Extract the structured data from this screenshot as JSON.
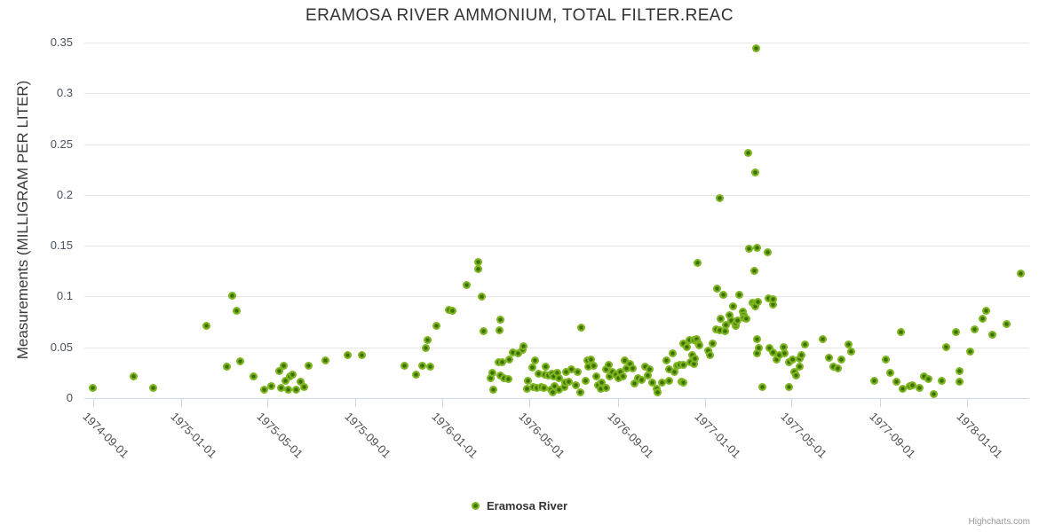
{
  "credits": {
    "label": "Highcharts.com"
  },
  "colors": {
    "marker_fill": "#7cb520",
    "marker_core": "#3e7100",
    "grid": "#e6e6e6",
    "axis_line": "#ccd6eb",
    "title": "#333333",
    "tick_label": "#4d4d4d"
  },
  "chart_data": {
    "type": "scatter",
    "title": "ERAMOSA RIVER AMMONIUM, TOTAL FILTER.REAC",
    "ylabel": "Measurements (MILLIGRAM PER LITER)",
    "xlabel": "",
    "ylim": [
      0,
      0.35
    ],
    "y_ticks": [
      0,
      0.05,
      0.1,
      0.15,
      0.2,
      0.25,
      0.3,
      0.35
    ],
    "x_ticks": [
      "1974-09-01",
      "1975-01-01",
      "1975-05-01",
      "1975-09-01",
      "1976-01-01",
      "1976-05-01",
      "1976-09-01",
      "1977-01-01",
      "1977-05-01",
      "1977-09-01",
      "1978-01-01"
    ],
    "x_range": [
      "1974-08-19",
      "1978-03-29"
    ],
    "grid": true,
    "legend_position": "bottom-center",
    "series": [
      {
        "name": "Eramosa River",
        "color": "#7cb520",
        "points": [
          [
            "1974-08-31",
            0.01
          ],
          [
            "1974-10-27",
            0.021
          ],
          [
            "1974-11-24",
            0.01
          ],
          [
            "1975-02-06",
            0.071
          ],
          [
            "1975-03-06",
            0.031
          ],
          [
            "1975-03-14",
            0.101
          ],
          [
            "1975-03-20",
            0.086
          ],
          [
            "1975-03-25",
            0.036
          ],
          [
            "1975-04-13",
            0.021
          ],
          [
            "1975-04-27",
            0.008
          ],
          [
            "1975-05-07",
            0.012
          ],
          [
            "1975-05-18",
            0.027
          ],
          [
            "1975-05-21",
            0.01
          ],
          [
            "1975-05-25",
            0.032
          ],
          [
            "1975-05-27",
            0.017
          ],
          [
            "1975-05-31",
            0.008
          ],
          [
            "1975-06-02",
            0.021
          ],
          [
            "1975-06-06",
            0.023
          ],
          [
            "1975-06-11",
            0.008
          ],
          [
            "1975-06-17",
            0.016
          ],
          [
            "1975-06-22",
            0.011
          ],
          [
            "1975-06-28",
            0.032
          ],
          [
            "1975-07-22",
            0.037
          ],
          [
            "1975-08-21",
            0.042
          ],
          [
            "1975-09-10",
            0.042
          ],
          [
            "1975-11-09",
            0.032
          ],
          [
            "1975-11-25",
            0.023
          ],
          [
            "1975-12-03",
            0.032
          ],
          [
            "1975-12-08",
            0.049
          ],
          [
            "1975-12-11",
            0.057
          ],
          [
            "1975-12-15",
            0.031
          ],
          [
            "1975-12-23",
            0.071
          ],
          [
            "1976-01-10",
            0.087
          ],
          [
            "1976-01-15",
            0.086
          ],
          [
            "1976-02-03",
            0.111
          ],
          [
            "1976-02-20",
            0.134
          ],
          [
            "1976-02-20",
            0.127
          ],
          [
            "1976-02-24",
            0.1
          ],
          [
            "1976-02-27",
            0.066
          ],
          [
            "1976-03-08",
            0.02
          ],
          [
            "1976-03-10",
            0.025
          ],
          [
            "1976-03-12",
            0.008
          ],
          [
            "1976-03-19",
            0.035
          ],
          [
            "1976-03-20",
            0.067
          ],
          [
            "1976-03-21",
            0.077
          ],
          [
            "1976-03-22",
            0.022
          ],
          [
            "1976-03-24",
            0.035
          ],
          [
            "1976-03-27",
            0.02
          ],
          [
            "1976-04-02",
            0.019
          ],
          [
            "1976-04-03",
            0.038
          ],
          [
            "1976-04-08",
            0.045
          ],
          [
            "1976-04-15",
            0.044
          ],
          [
            "1976-04-21",
            0.048
          ],
          [
            "1976-04-23",
            0.051
          ],
          [
            "1976-04-28",
            0.009
          ],
          [
            "1976-04-29",
            0.017
          ],
          [
            "1976-05-05",
            0.03
          ],
          [
            "1976-05-06",
            0.011
          ],
          [
            "1976-05-09",
            0.037
          ],
          [
            "1976-05-11",
            0.01
          ],
          [
            "1976-05-14",
            0.024
          ],
          [
            "1976-05-17",
            0.011
          ],
          [
            "1976-05-21",
            0.01
          ],
          [
            "1976-05-22",
            0.023
          ],
          [
            "1976-05-24",
            0.031
          ],
          [
            "1976-05-27",
            0.022
          ],
          [
            "1976-05-31",
            0.008
          ],
          [
            "1976-06-01",
            0.024
          ],
          [
            "1976-06-03",
            0.006
          ],
          [
            "1976-06-04",
            0.021
          ],
          [
            "1976-06-05",
            0.012
          ],
          [
            "1976-06-09",
            0.025
          ],
          [
            "1976-06-11",
            0.02
          ],
          [
            "1976-06-11",
            0.008
          ],
          [
            "1976-06-18",
            0.011
          ],
          [
            "1976-06-20",
            0.015
          ],
          [
            "1976-06-21",
            0.026
          ],
          [
            "1976-06-25",
            0.016
          ],
          [
            "1976-06-28",
            0.028
          ],
          [
            "1976-07-05",
            0.013
          ],
          [
            "1976-07-07",
            0.026
          ],
          [
            "1976-07-11",
            0.006
          ],
          [
            "1976-07-12",
            0.069
          ],
          [
            "1976-07-18",
            0.017
          ],
          [
            "1976-07-21",
            0.037
          ],
          [
            "1976-07-22",
            0.031
          ],
          [
            "1976-07-26",
            0.038
          ],
          [
            "1976-07-29",
            0.032
          ],
          [
            "1976-08-02",
            0.021
          ],
          [
            "1976-08-05",
            0.013
          ],
          [
            "1976-08-08",
            0.009
          ],
          [
            "1976-08-10",
            0.015
          ],
          [
            "1976-08-16",
            0.028
          ],
          [
            "1976-08-16",
            0.01
          ],
          [
            "1976-08-20",
            0.033
          ],
          [
            "1976-08-21",
            0.021
          ],
          [
            "1976-08-24",
            0.026
          ],
          [
            "1976-08-29",
            0.023
          ],
          [
            "1976-09-02",
            0.02
          ],
          [
            "1976-09-04",
            0.026
          ],
          [
            "1976-09-08",
            0.021
          ],
          [
            "1976-09-11",
            0.037
          ],
          [
            "1976-09-13",
            0.029
          ],
          [
            "1976-09-18",
            0.034
          ],
          [
            "1976-09-22",
            0.029
          ],
          [
            "1976-09-24",
            0.014
          ],
          [
            "1976-09-29",
            0.02
          ],
          [
            "1976-10-04",
            0.018
          ],
          [
            "1976-10-09",
            0.031
          ],
          [
            "1976-10-13",
            0.022
          ],
          [
            "1976-10-15",
            0.028
          ],
          [
            "1976-10-19",
            0.015
          ],
          [
            "1976-10-25",
            0.009
          ],
          [
            "1976-10-26",
            0.006
          ],
          [
            "1976-11-02",
            0.015
          ],
          [
            "1976-11-08",
            0.037
          ],
          [
            "1976-11-11",
            0.017
          ],
          [
            "1976-11-11",
            0.028
          ],
          [
            "1976-11-16",
            0.044
          ],
          [
            "1976-11-19",
            0.026
          ],
          [
            "1976-11-23",
            0.032
          ],
          [
            "1976-11-27",
            0.033
          ],
          [
            "1976-11-29",
            0.016
          ],
          [
            "1976-12-02",
            0.054
          ],
          [
            "1976-12-02",
            0.033
          ],
          [
            "1976-12-02",
            0.015
          ],
          [
            "1976-12-06",
            0.05
          ],
          [
            "1976-12-10",
            0.057
          ],
          [
            "1976-12-11",
            0.035
          ],
          [
            "1976-12-14",
            0.042
          ],
          [
            "1976-12-16",
            0.057
          ],
          [
            "1976-12-16",
            0.034
          ],
          [
            "1976-12-17",
            0.039
          ],
          [
            "1976-12-20",
            0.058
          ],
          [
            "1976-12-21",
            0.133
          ],
          [
            "1976-12-23",
            0.054
          ],
          [
            "1976-12-24",
            0.052
          ],
          [
            "1977-01-05",
            0.047
          ],
          [
            "1977-01-07",
            0.042
          ],
          [
            "1977-01-11",
            0.054
          ],
          [
            "1977-01-16",
            0.068
          ],
          [
            "1977-01-18",
            0.108
          ],
          [
            "1977-01-21",
            0.197
          ],
          [
            "1977-01-21",
            0.067
          ],
          [
            "1977-01-22",
            0.078
          ],
          [
            "1977-01-26",
            0.102
          ],
          [
            "1977-01-28",
            0.066
          ],
          [
            "1977-01-30",
            0.072
          ],
          [
            "1977-02-04",
            0.082
          ],
          [
            "1977-02-06",
            0.076
          ],
          [
            "1977-02-09",
            0.09
          ],
          [
            "1977-02-12",
            0.071
          ],
          [
            "1977-02-13",
            0.074
          ],
          [
            "1977-02-15",
            0.076
          ],
          [
            "1977-02-17",
            0.102
          ],
          [
            "1977-02-22",
            0.085
          ],
          [
            "1977-02-23",
            0.082
          ],
          [
            "1977-02-24",
            0.079
          ],
          [
            "1977-02-27",
            0.078
          ],
          [
            "1977-03-02",
            0.241
          ],
          [
            "1977-03-03",
            0.147
          ],
          [
            "1977-03-08",
            0.094
          ],
          [
            "1977-03-10",
            0.125
          ],
          [
            "1977-03-10",
            0.092
          ],
          [
            "1977-03-12",
            0.222
          ],
          [
            "1977-03-12",
            0.09
          ],
          [
            "1977-03-13",
            0.344
          ],
          [
            "1977-03-14",
            0.148
          ],
          [
            "1977-03-14",
            0.058
          ],
          [
            "1977-03-14",
            0.044
          ],
          [
            "1977-03-15",
            0.095
          ],
          [
            "1977-03-17",
            0.049
          ],
          [
            "1977-03-22",
            0.011
          ],
          [
            "1977-03-29",
            0.144
          ],
          [
            "1977-03-30",
            0.098
          ],
          [
            "1977-04-01",
            0.049
          ],
          [
            "1977-04-05",
            0.092
          ],
          [
            "1977-04-05",
            0.045
          ],
          [
            "1977-04-06",
            0.097
          ],
          [
            "1977-04-10",
            0.038
          ],
          [
            "1977-04-14",
            0.042
          ],
          [
            "1977-04-20",
            0.05
          ],
          [
            "1977-04-22",
            0.044
          ],
          [
            "1977-04-28",
            0.035
          ],
          [
            "1977-04-28",
            0.011
          ],
          [
            "1977-05-03",
            0.038
          ],
          [
            "1977-05-05",
            0.026
          ],
          [
            "1977-05-08",
            0.022
          ],
          [
            "1977-05-12",
            0.039
          ],
          [
            "1977-05-13",
            0.031
          ],
          [
            "1977-05-15",
            0.042
          ],
          [
            "1977-05-20",
            0.053
          ],
          [
            "1977-06-14",
            0.058
          ],
          [
            "1977-06-22",
            0.04
          ],
          [
            "1977-06-28",
            0.031
          ],
          [
            "1977-07-05",
            0.029
          ],
          [
            "1977-07-10",
            0.038
          ],
          [
            "1977-07-19",
            0.053
          ],
          [
            "1977-07-23",
            0.046
          ],
          [
            "1977-08-25",
            0.017
          ],
          [
            "1977-09-09",
            0.038
          ],
          [
            "1977-09-16",
            0.025
          ],
          [
            "1977-09-25",
            0.016
          ],
          [
            "1977-10-01",
            0.065
          ],
          [
            "1977-10-03",
            0.009
          ],
          [
            "1977-10-13",
            0.012
          ],
          [
            "1977-10-17",
            0.013
          ],
          [
            "1977-10-26",
            0.01
          ],
          [
            "1977-11-02",
            0.021
          ],
          [
            "1977-11-08",
            0.019
          ],
          [
            "1977-11-16",
            0.004
          ],
          [
            "1977-11-26",
            0.017
          ],
          [
            "1977-12-03",
            0.05
          ],
          [
            "1977-12-16",
            0.065
          ],
          [
            "1977-12-21",
            0.027
          ],
          [
            "1977-12-21",
            0.016
          ],
          [
            "1978-01-05",
            0.046
          ],
          [
            "1978-01-11",
            0.068
          ],
          [
            "1978-01-22",
            0.078
          ],
          [
            "1978-01-27",
            0.086
          ],
          [
            "1978-02-05",
            0.062
          ],
          [
            "1978-02-25",
            0.073
          ],
          [
            "1978-03-17",
            0.123
          ]
        ]
      }
    ]
  }
}
